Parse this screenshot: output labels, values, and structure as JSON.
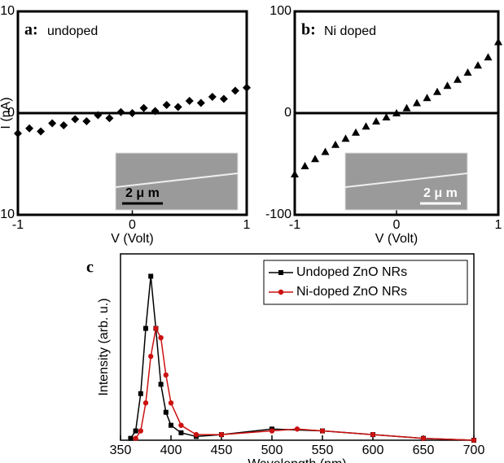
{
  "chart_data": [
    {
      "type": "scatter",
      "label": "a:",
      "title": "undoped",
      "xlabel": "V (Volt)",
      "ylabel": "I (nA)",
      "x": [
        -1,
        -0.9,
        -0.8,
        -0.7,
        -0.6,
        -0.5,
        -0.4,
        -0.3,
        -0.2,
        -0.1,
        0,
        0.1,
        0.2,
        0.3,
        0.4,
        0.5,
        0.6,
        0.7,
        0.8,
        0.9,
        1
      ],
      "series": [
        {
          "color": "#000000",
          "marker": "diamond",
          "values": [
            -2.0,
            -1.5,
            -1.8,
            -1.0,
            -1.2,
            -0.6,
            -0.8,
            -0.2,
            -0.5,
            0.1,
            0.0,
            0.5,
            0.2,
            0.8,
            0.6,
            1.2,
            1.0,
            1.6,
            1.4,
            2.2,
            2.5
          ]
        }
      ],
      "xlim": [
        -1,
        1
      ],
      "xticks": [
        -1,
        0,
        1
      ],
      "ylim": [
        -10,
        10
      ],
      "yticks": [
        -10,
        0,
        10
      ],
      "hline": 0,
      "inset_label": "2 μ m"
    },
    {
      "type": "scatter",
      "label": "b:",
      "title": "Ni doped",
      "xlabel": "V (Volt)",
      "x": [
        -1,
        -0.9,
        -0.8,
        -0.7,
        -0.6,
        -0.5,
        -0.4,
        -0.3,
        -0.2,
        -0.1,
        0,
        0.1,
        0.2,
        0.3,
        0.4,
        0.5,
        0.6,
        0.7,
        0.8,
        0.9,
        1
      ],
      "series": [
        {
          "color": "#000000",
          "marker": "triangle",
          "values": [
            -60,
            -52,
            -45,
            -38,
            -31,
            -25,
            -19,
            -13,
            -8,
            -4,
            0,
            5,
            10,
            15,
            21,
            27,
            33,
            40,
            47,
            55,
            70
          ]
        }
      ],
      "xlim": [
        -1,
        1
      ],
      "xticks": [
        -1,
        0,
        1
      ],
      "ylim": [
        -100,
        100
      ],
      "yticks": [
        -100,
        0,
        100
      ],
      "hline": 0,
      "inset_label": "2 μ m"
    },
    {
      "type": "line",
      "label": "c",
      "xlabel": "Wavelength (nm)",
      "ylabel": "Intensity (arb. u.)",
      "series": [
        {
          "name": "Undoped ZnO NRs",
          "color": "#000000",
          "marker": "square",
          "x": [
            360,
            365,
            370,
            375,
            380,
            385,
            390,
            395,
            400,
            410,
            425,
            450,
            500,
            550,
            600,
            650,
            700
          ],
          "values": [
            0.01,
            0.05,
            0.25,
            0.6,
            0.88,
            0.6,
            0.3,
            0.15,
            0.08,
            0.04,
            0.02,
            0.03,
            0.06,
            0.05,
            0.03,
            0.01,
            0.0
          ]
        },
        {
          "name": "Ni-doped ZnO NRs",
          "color": "#cc1111",
          "marker": "circle",
          "x": [
            365,
            370,
            375,
            380,
            385,
            390,
            395,
            400,
            410,
            425,
            450,
            500,
            525,
            550,
            600,
            650,
            700
          ],
          "values": [
            0.01,
            0.05,
            0.2,
            0.45,
            0.6,
            0.55,
            0.35,
            0.2,
            0.08,
            0.03,
            0.03,
            0.05,
            0.06,
            0.05,
            0.03,
            0.01,
            0.0
          ]
        }
      ],
      "xlim": [
        350,
        700
      ],
      "xticks": [
        350,
        400,
        450,
        500,
        550,
        600,
        650,
        700
      ],
      "ylim": [
        0,
        1
      ],
      "legend": "upper right"
    }
  ]
}
